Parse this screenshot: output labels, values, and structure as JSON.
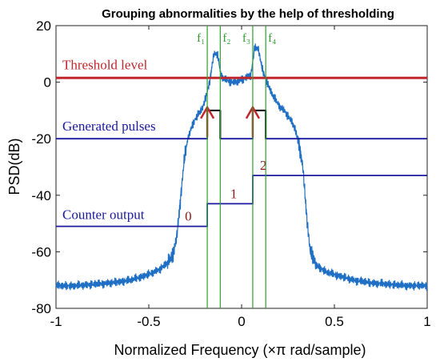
{
  "chart_data": {
    "type": "line",
    "title": "Grouping abnormalities by the help of thresholding",
    "xlabel": "Normalized Frequency (×π rad/sample)",
    "ylabel": "PSD(dB)",
    "xlim": [
      -1,
      1
    ],
    "ylim": [
      -80,
      20
    ],
    "xticks": [
      "-1",
      "-0.5",
      "0",
      "0.5",
      "1"
    ],
    "yticks": [
      "20",
      "0",
      "-20",
      "-40",
      "-60",
      "-80"
    ],
    "grid": false,
    "colors": {
      "psd": "#1f6fc5",
      "threshold": "#c0272d",
      "pulses": "#1a1a9e",
      "counter": "#1a1a9e",
      "markers": "#2e9e2e",
      "arrows": "#c0272d",
      "counter_labels": "#8b1a1a"
    },
    "psd_envelope": {
      "x": [
        -1.0,
        -0.9,
        -0.8,
        -0.7,
        -0.6,
        -0.5,
        -0.45,
        -0.4,
        -0.37,
        -0.35,
        -0.33,
        -0.31,
        -0.29,
        -0.27,
        -0.25,
        -0.23,
        -0.21,
        -0.19,
        -0.17,
        -0.15,
        -0.13,
        -0.11,
        -0.09,
        -0.07,
        -0.05,
        -0.03,
        -0.01,
        0.01,
        0.03,
        0.05,
        0.07,
        0.09,
        0.11,
        0.13,
        0.15,
        0.17,
        0.19,
        0.21,
        0.23,
        0.25,
        0.27,
        0.29,
        0.31,
        0.33,
        0.35,
        0.37,
        0.4,
        0.45,
        0.5,
        0.6,
        0.7,
        0.8,
        0.9,
        1.0
      ],
      "y": [
        -72,
        -72,
        -71.5,
        -71,
        -70,
        -68,
        -66.5,
        -64,
        -61,
        -55,
        -42,
        -28,
        -20,
        -16,
        -13,
        -11,
        -9,
        -5,
        1,
        10,
        10,
        2,
        1,
        0.5,
        0,
        0,
        0.5,
        1,
        2,
        2.5,
        12,
        12,
        5,
        1,
        -2,
        -5,
        -7,
        -9,
        -10,
        -12,
        -14,
        -17,
        -22,
        -30,
        -47,
        -60,
        -64.5,
        -67,
        -68,
        -70,
        -71,
        -71.5,
        -72,
        -72
      ]
    },
    "threshold": {
      "label": "Threshold level",
      "y": 1.5
    },
    "markers": [
      {
        "label": "f₁",
        "x": -0.185
      },
      {
        "label": "f₂",
        "x": -0.115
      },
      {
        "label": "f₃",
        "x": 0.06
      },
      {
        "label": "f₄",
        "x": 0.13
      }
    ],
    "generated_pulses": {
      "label": "Generated pulses",
      "baseline": -20,
      "high": -10,
      "pulses": [
        {
          "x_start": -0.185,
          "x_end": -0.115
        },
        {
          "x_start": 0.06,
          "x_end": 0.13
        }
      ]
    },
    "counter_output": {
      "label": "Counter output",
      "steps": [
        {
          "x_start": -1.0,
          "x_end": -0.185,
          "y": -51,
          "value": "0"
        },
        {
          "x_start": -0.185,
          "x_end": 0.06,
          "y": -43,
          "value": "1"
        },
        {
          "x_start": 0.06,
          "x_end": 1.0,
          "y": -33,
          "value": "2"
        }
      ]
    }
  }
}
